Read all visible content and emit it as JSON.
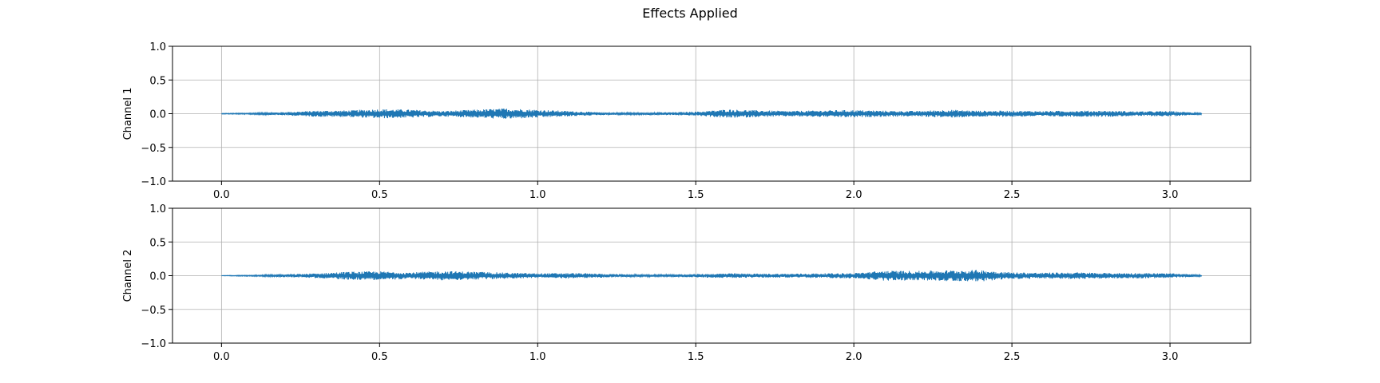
{
  "chart_data": {
    "type": "line",
    "title": "Effects Applied",
    "xlim": [
      -0.155,
      3.255
    ],
    "x_ticks": [
      "0.0",
      "0.5",
      "1.0",
      "1.5",
      "2.0",
      "2.5",
      "3.0"
    ],
    "x_tick_values": [
      0.0,
      0.5,
      1.0,
      1.5,
      2.0,
      2.5,
      3.0
    ],
    "grid": true,
    "line_color": "#1f77b4",
    "x_range": [
      0.0,
      3.1
    ],
    "subplots": [
      {
        "ylabel": "Channel 1",
        "ylim": [
          -1.0,
          1.0
        ],
        "y_ticks": [
          "1.0",
          "0.5",
          "0.0",
          "−0.5",
          "−1.0"
        ],
        "y_tick_values": [
          1.0,
          0.5,
          0.0,
          -0.5,
          -1.0
        ],
        "envelope": {
          "x": [
            0.0,
            0.1,
            0.2,
            0.3,
            0.4,
            0.5,
            0.6,
            0.7,
            0.8,
            0.9,
            1.0,
            1.1,
            1.2,
            1.3,
            1.4,
            1.5,
            1.6,
            1.7,
            1.8,
            1.9,
            2.0,
            2.1,
            2.2,
            2.3,
            2.4,
            2.5,
            2.6,
            2.7,
            2.8,
            2.9,
            3.0,
            3.1
          ],
          "amplitude": [
            0.005,
            0.01,
            0.025,
            0.045,
            0.05,
            0.07,
            0.06,
            0.04,
            0.06,
            0.08,
            0.06,
            0.04,
            0.02,
            0.015,
            0.02,
            0.03,
            0.065,
            0.05,
            0.04,
            0.05,
            0.055,
            0.045,
            0.04,
            0.06,
            0.045,
            0.045,
            0.04,
            0.045,
            0.045,
            0.035,
            0.04,
            0.01
          ]
        }
      },
      {
        "ylabel": "Channel 2",
        "ylim": [
          -1.0,
          1.0
        ],
        "y_ticks": [
          "1.0",
          "0.5",
          "0.0",
          "−0.5",
          "−1.0"
        ],
        "y_tick_values": [
          1.0,
          0.5,
          0.0,
          -0.5,
          -1.0
        ],
        "envelope": {
          "x": [
            0.0,
            0.1,
            0.2,
            0.3,
            0.4,
            0.5,
            0.6,
            0.7,
            0.8,
            0.9,
            1.0,
            1.1,
            1.2,
            1.3,
            1.4,
            1.5,
            1.6,
            1.7,
            1.8,
            1.9,
            2.0,
            2.1,
            2.2,
            2.3,
            2.4,
            2.5,
            2.6,
            2.7,
            2.8,
            2.9,
            3.0,
            3.1
          ],
          "amplitude": [
            0.003,
            0.008,
            0.02,
            0.035,
            0.06,
            0.065,
            0.05,
            0.07,
            0.06,
            0.045,
            0.035,
            0.04,
            0.03,
            0.015,
            0.015,
            0.025,
            0.035,
            0.03,
            0.03,
            0.035,
            0.04,
            0.075,
            0.07,
            0.08,
            0.085,
            0.05,
            0.045,
            0.05,
            0.04,
            0.04,
            0.035,
            0.01
          ]
        }
      }
    ]
  }
}
